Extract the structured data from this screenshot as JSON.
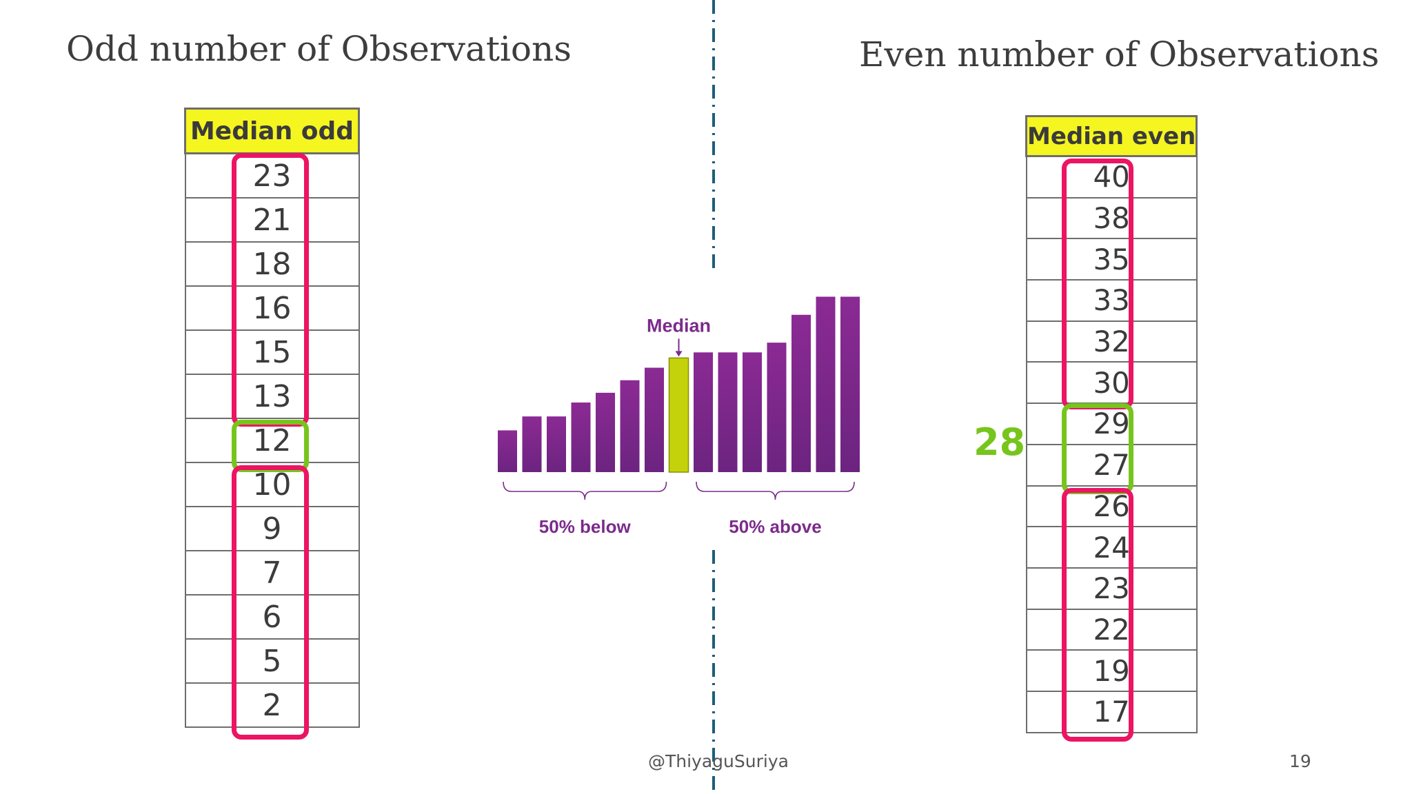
{
  "headings": {
    "left": "Odd number of Observations",
    "right": "Even number of Observations"
  },
  "odd_table": {
    "header": "Median odd",
    "values": [
      "23",
      "21",
      "18",
      "16",
      "15",
      "13",
      "12",
      "10",
      "9",
      "7",
      "6",
      "5",
      "2"
    ],
    "median_value": "12"
  },
  "even_table": {
    "header": "Median even",
    "values": [
      "40",
      "38",
      "35",
      "33",
      "32",
      "30",
      "29",
      "27",
      "26",
      "24",
      "23",
      "22",
      "19",
      "17"
    ],
    "median_pair": [
      "29",
      "27"
    ],
    "median_result": "28"
  },
  "chart_data": {
    "type": "bar",
    "values": [
      3,
      4,
      4,
      5,
      5.7,
      6.6,
      7.5,
      8.2,
      8.6,
      8.6,
      8.6,
      9.3,
      11.3,
      12.6,
      12.6
    ],
    "median_index": 7,
    "annotation": "Median",
    "brace_labels": [
      "50% below",
      "50% above"
    ],
    "colors": {
      "bar": "#8b2a94",
      "bar_bottom": "#6c2480",
      "median_bar": "#c4d20c",
      "text": "#7b2b8b"
    }
  },
  "colors": {
    "highlight_pink": "#ec1463",
    "highlight_green": "#77c51c",
    "header_yellow": "#f5f520",
    "divider": "#1d5e78"
  },
  "footer": {
    "handle": "@ThiyaguSuriya",
    "page_number": "19"
  }
}
